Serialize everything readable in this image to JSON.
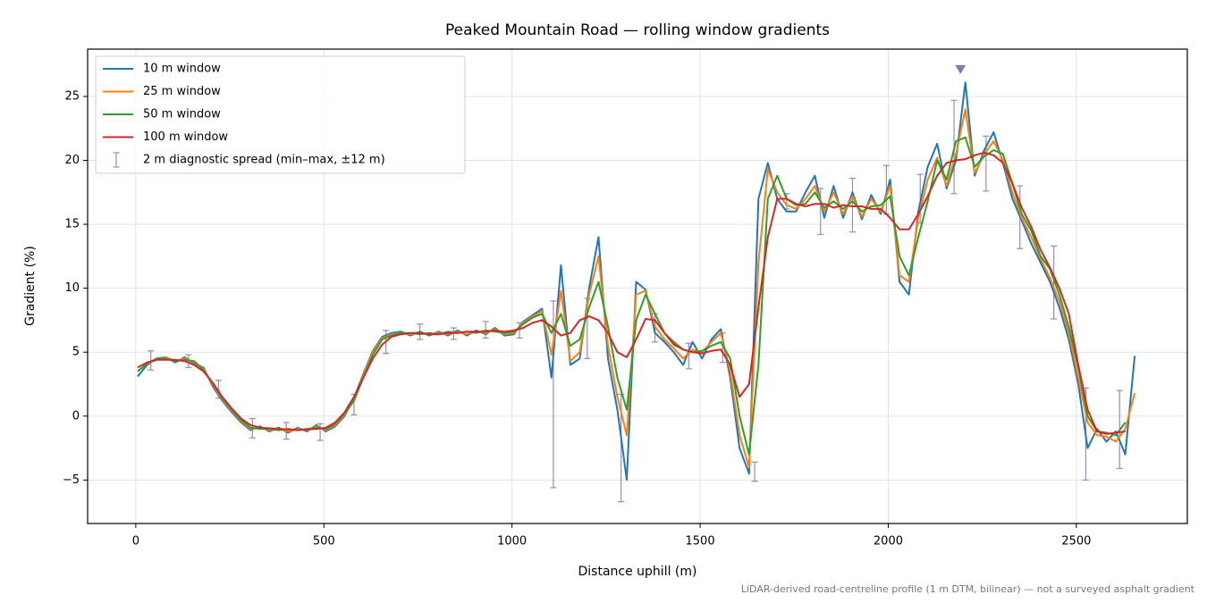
{
  "chart_data": {
    "type": "line",
    "title": "Peaked Mountain Road — rolling window gradients",
    "x_label": "Distance uphill (m)",
    "y_label": "Gradient (%)",
    "footnote": "LiDAR-derived road-centreline profile (1 m DTM, bilinear) — not a surveyed asphalt gradient",
    "xlim": [
      -128,
      2795
    ],
    "ylim": [
      -8.4,
      28.7
    ],
    "xticks": [
      0,
      500,
      1000,
      1500,
      2000,
      2500
    ],
    "yticks": [
      {
        "value": -5,
        "label": "−5"
      },
      0,
      5,
      10,
      15,
      20,
      25
    ],
    "grid": true,
    "legend": "upper left",
    "x": [
      5,
      30,
      55,
      80,
      105,
      130,
      155,
      180,
      205,
      230,
      255,
      280,
      305,
      330,
      355,
      380,
      405,
      430,
      455,
      480,
      505,
      530,
      555,
      580,
      605,
      630,
      655,
      680,
      705,
      730,
      755,
      780,
      805,
      830,
      855,
      880,
      905,
      930,
      955,
      980,
      1005,
      1030,
      1055,
      1080,
      1105,
      1130,
      1155,
      1180,
      1205,
      1230,
      1255,
      1280,
      1305,
      1330,
      1355,
      1380,
      1405,
      1430,
      1455,
      1480,
      1505,
      1530,
      1555,
      1580,
      1605,
      1630,
      1655,
      1680,
      1705,
      1730,
      1755,
      1780,
      1805,
      1830,
      1855,
      1880,
      1905,
      1930,
      1955,
      1980,
      2005,
      2030,
      2055,
      2080,
      2105,
      2130,
      2155,
      2180,
      2205,
      2230,
      2255,
      2280,
      2305,
      2330,
      2355,
      2380,
      2405,
      2430,
      2455,
      2480,
      2505,
      2530,
      2555,
      2580,
      2605,
      2630,
      2655
    ],
    "series": [
      {
        "name": "10 m window",
        "color": "#1f77b4",
        "values": [
          3.1,
          4.0,
          4.5,
          4.6,
          4.2,
          4.6,
          4.1,
          3.8,
          2.3,
          1.2,
          0.3,
          -0.5,
          -1.1,
          -0.8,
          -1.2,
          -0.9,
          -1.3,
          -0.9,
          -1.2,
          -0.7,
          -1.2,
          -0.8,
          0.0,
          1.4,
          3.3,
          5.1,
          6.2,
          6.5,
          6.6,
          6.3,
          6.6,
          6.3,
          6.6,
          6.3,
          6.7,
          6.3,
          6.7,
          6.4,
          6.9,
          6.3,
          6.4,
          7.4,
          7.9,
          8.4,
          3.0,
          11.8,
          4.0,
          4.5,
          10.0,
          14.0,
          4.5,
          0.5,
          -5.0,
          10.5,
          9.9,
          6.5,
          5.8,
          5.0,
          4.0,
          5.8,
          4.5,
          6.0,
          6.8,
          3.0,
          -2.5,
          -4.5,
          17.0,
          19.8,
          17.0,
          16.0,
          16.0,
          17.5,
          18.8,
          15.5,
          18.0,
          15.5,
          17.5,
          15.4,
          17.3,
          15.8,
          18.5,
          10.5,
          9.5,
          16.0,
          19.5,
          21.3,
          17.8,
          20.0,
          26.1,
          18.8,
          20.8,
          22.2,
          19.8,
          17.0,
          15.3,
          13.5,
          12.0,
          10.5,
          8.5,
          6.0,
          2.5,
          -2.5,
          -1.0,
          -2.0,
          -1.2,
          -3.0,
          4.7
        ]
      },
      {
        "name": "25 m window",
        "color": "#ff7f0e",
        "values": [
          3.5,
          4.1,
          4.4,
          4.6,
          4.3,
          4.5,
          4.2,
          3.7,
          2.4,
          1.3,
          0.4,
          -0.4,
          -1.0,
          -0.9,
          -1.1,
          -1.0,
          -1.2,
          -1.0,
          -1.1,
          -0.8,
          -1.1,
          -0.7,
          0.1,
          1.3,
          3.2,
          5.0,
          6.1,
          6.4,
          6.5,
          6.4,
          6.5,
          6.4,
          6.5,
          6.4,
          6.6,
          6.4,
          6.6,
          6.5,
          6.8,
          6.4,
          6.5,
          7.3,
          7.8,
          8.2,
          4.8,
          9.8,
          4.3,
          5.0,
          9.5,
          12.5,
          5.5,
          1.5,
          -1.5,
          9.5,
          9.8,
          7.0,
          6.0,
          5.3,
          4.5,
          5.2,
          5.0,
          5.8,
          6.5,
          3.5,
          -1.5,
          -4.0,
          12.0,
          19.3,
          17.5,
          16.5,
          16.2,
          17.0,
          18.0,
          16.0,
          17.5,
          15.8,
          17.2,
          15.6,
          17.0,
          16.0,
          18.0,
          11.0,
          10.5,
          15.5,
          18.5,
          20.2,
          18.0,
          20.5,
          24.0,
          19.0,
          20.5,
          21.5,
          20.0,
          17.5,
          15.5,
          14.0,
          12.3,
          10.8,
          9.0,
          6.5,
          3.0,
          -0.5,
          -1.5,
          -1.6,
          -2.0,
          -1.0,
          1.8
        ]
      },
      {
        "name": "50 m window",
        "color": "#2ca02c",
        "values": [
          3.5,
          4.1,
          4.5,
          4.5,
          4.3,
          4.4,
          4.3,
          3.6,
          2.5,
          1.4,
          0.5,
          -0.3,
          -0.9,
          -1.0,
          -1.0,
          -1.1,
          -1.0,
          -1.1,
          -1.0,
          -0.9,
          -1.0,
          -0.6,
          0.2,
          1.2,
          3.0,
          4.8,
          6.0,
          6.3,
          6.5,
          6.5,
          6.4,
          6.5,
          6.4,
          6.6,
          6.5,
          6.6,
          6.5,
          6.7,
          6.6,
          6.5,
          6.6,
          7.2,
          7.7,
          8.0,
          6.5,
          8.0,
          5.5,
          6.0,
          8.5,
          10.5,
          7.0,
          3.0,
          0.5,
          7.5,
          9.5,
          8.0,
          6.5,
          5.8,
          5.2,
          5.0,
          5.1,
          5.5,
          5.8,
          4.5,
          0.0,
          -3.0,
          4.0,
          17.0,
          18.8,
          17.0,
          16.5,
          16.6,
          17.5,
          16.3,
          16.8,
          16.2,
          16.8,
          16.0,
          16.4,
          16.5,
          17.2,
          12.5,
          11.0,
          14.0,
          16.8,
          20.0,
          18.5,
          21.5,
          21.8,
          19.5,
          20.3,
          20.8,
          20.5,
          18.2,
          15.8,
          14.5,
          12.5,
          11.5,
          9.5,
          7.0,
          3.8,
          0.0,
          -1.2,
          -1.3,
          -1.5,
          -0.5,
          null
        ]
      },
      {
        "name": "100 m window",
        "color": "#d62728",
        "values": [
          3.8,
          4.2,
          4.4,
          4.4,
          4.4,
          4.3,
          4.0,
          3.5,
          2.6,
          1.5,
          0.6,
          -0.2,
          -0.7,
          -0.9,
          -0.95,
          -1.0,
          -1.05,
          -1.1,
          -1.05,
          -1.0,
          -0.9,
          -0.5,
          0.3,
          1.5,
          3.0,
          4.5,
          5.6,
          6.2,
          6.4,
          6.5,
          6.5,
          6.4,
          6.4,
          6.5,
          6.5,
          6.6,
          6.6,
          6.6,
          6.7,
          6.6,
          6.7,
          6.9,
          7.3,
          7.5,
          7.0,
          6.3,
          6.5,
          7.5,
          7.8,
          7.5,
          6.5,
          5.0,
          4.6,
          6.0,
          7.6,
          7.5,
          6.5,
          5.6,
          5.2,
          5.0,
          4.9,
          5.1,
          5.2,
          4.0,
          1.5,
          2.5,
          8.5,
          14.0,
          17.0,
          17.0,
          16.6,
          16.4,
          16.6,
          16.6,
          16.3,
          16.5,
          16.4,
          16.4,
          16.2,
          16.2,
          15.5,
          14.6,
          14.6,
          15.8,
          17.2,
          18.8,
          19.8,
          20.0,
          20.1,
          20.4,
          20.6,
          20.4,
          19.8,
          18.2,
          16.3,
          14.8,
          13.0,
          11.6,
          10.0,
          8.0,
          4.0,
          0.5,
          -1.2,
          -1.4,
          -1.3,
          -1.2,
          null
        ]
      }
    ],
    "errorbars": {
      "name": "2 m diagnostic spread (min–max, ±12 m)",
      "color": "#9a8bb8",
      "x": [
        40,
        140,
        220,
        310,
        400,
        490,
        580,
        665,
        755,
        845,
        930,
        1020,
        1110,
        1200,
        1290,
        1380,
        1470,
        1560,
        1645,
        1730,
        1820,
        1905,
        1995,
        2085,
        2175,
        2260,
        2350,
        2440,
        2525,
        2615
      ],
      "low": [
        3.6,
        3.8,
        1.4,
        -1.7,
        -1.8,
        -1.9,
        0.1,
        4.9,
        6.0,
        6.0,
        6.1,
        6.1,
        -5.6,
        4.5,
        -6.7,
        5.8,
        3.7,
        4.2,
        -5.1,
        16.2,
        14.2,
        14.4,
        15.8,
        15.1,
        17.4,
        17.6,
        13.1,
        7.6,
        -5.0,
        -4.1
      ],
      "high": [
        5.1,
        4.8,
        2.8,
        -0.2,
        -0.5,
        -0.6,
        1.7,
        6.7,
        7.2,
        6.9,
        7.4,
        7.3,
        9.0,
        9.2,
        1.7,
        8.0,
        5.7,
        6.5,
        -3.6,
        17.4,
        17.8,
        18.6,
        19.6,
        18.9,
        24.7,
        21.9,
        18.0,
        13.3,
        2.2,
        2.0
      ]
    },
    "peak_marker": {
      "x": 2192,
      "y": 27.1,
      "color": "#8a79b0"
    }
  }
}
